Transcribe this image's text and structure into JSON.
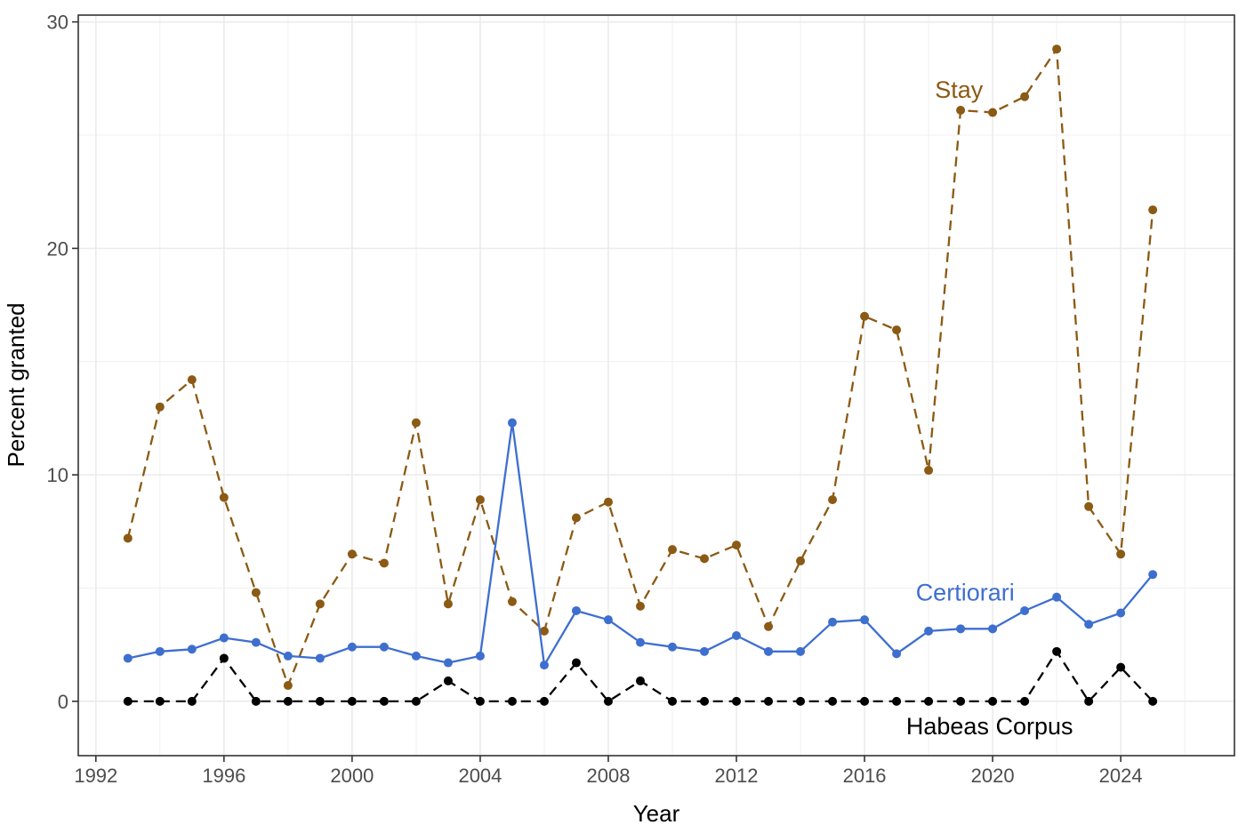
{
  "chart_data": {
    "type": "line",
    "xlabel": "Year",
    "ylabel": "Percent granted",
    "xlim": [
      1991.5,
      1993.5
    ],
    "x_range": [
      1991.45,
      2027.55
    ],
    "y_range": [
      -2.4,
      30.3
    ],
    "x_ticks": [
      1992,
      1996,
      2000,
      2004,
      2008,
      2012,
      2016,
      2020,
      2024
    ],
    "y_ticks": [
      0,
      10,
      20,
      30
    ],
    "grid": true,
    "legend": "none",
    "x": [
      1993,
      1994,
      1995,
      1996,
      1997,
      1998,
      1999,
      2000,
      2001,
      2002,
      2003,
      2004,
      2005,
      2006,
      2007,
      2008,
      2009,
      2010,
      2011,
      2012,
      2013,
      2014,
      2015,
      2016,
      2017,
      2018,
      2019,
      2020,
      2021,
      2022,
      2023,
      2024,
      2025
    ],
    "series": [
      {
        "name": "Stay",
        "color": "#8B5A14",
        "dash": "dashed",
        "values": [
          7.2,
          13.0,
          14.2,
          9.0,
          4.8,
          0.7,
          4.3,
          6.5,
          6.1,
          12.3,
          4.3,
          8.9,
          4.4,
          3.1,
          8.1,
          8.8,
          4.2,
          6.7,
          6.3,
          6.9,
          3.3,
          6.2,
          8.9,
          17.0,
          16.4,
          10.2,
          26.1,
          26.0,
          26.7,
          28.8,
          8.6,
          6.5,
          21.7
        ],
        "label_position": {
          "x": 2018.2,
          "y": 27.0
        }
      },
      {
        "name": "Certiorari",
        "color": "#3E6FCF",
        "dash": "solid",
        "values": [
          1.9,
          2.2,
          2.3,
          2.8,
          2.6,
          2.0,
          1.9,
          2.4,
          2.4,
          2.0,
          1.7,
          2.0,
          12.3,
          1.6,
          4.0,
          3.6,
          2.6,
          2.4,
          2.2,
          2.9,
          2.2,
          2.2,
          3.5,
          3.6,
          2.1,
          3.1,
          3.2,
          3.2,
          4.0,
          4.6,
          3.4,
          3.9,
          5.6
        ],
        "label_position": {
          "x": 2017.6,
          "y": 4.8
        }
      },
      {
        "name": "Habeas Corpus",
        "color": "#000000",
        "dash": "dashed",
        "values": [
          0,
          0,
          0,
          1.9,
          0,
          0,
          0,
          0,
          0,
          0,
          0.9,
          0,
          0,
          0,
          1.7,
          0,
          0.9,
          0,
          0,
          0,
          0,
          0,
          0,
          0,
          0,
          0,
          0,
          0,
          0,
          2.2,
          0,
          1.5,
          0
        ],
        "label_position": {
          "x": 2017.3,
          "y": -1.1
        }
      }
    ]
  }
}
